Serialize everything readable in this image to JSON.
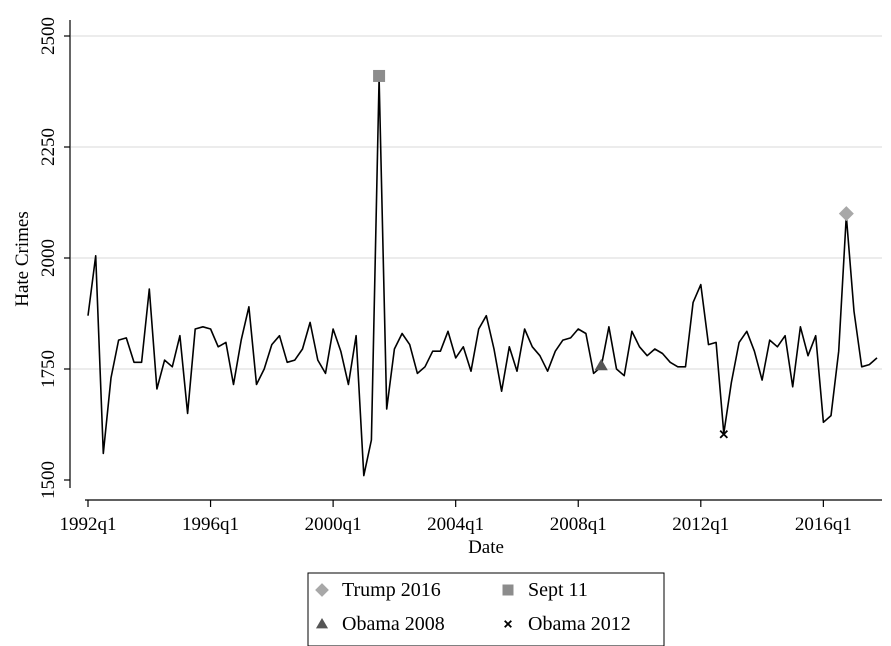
{
  "chart_data": {
    "type": "line",
    "title": "",
    "xlabel": "Date",
    "ylabel": "Hate Crimes",
    "ylim": [
      1500,
      2500
    ],
    "xlim": [
      "1992q1",
      "2017q4"
    ],
    "grid": true,
    "legend_position": "bottom",
    "yticks": [
      1500,
      1750,
      2000,
      2250,
      2500
    ],
    "xticks": [
      "1992q1",
      "1996q1",
      "2000q1",
      "2004q1",
      "2008q1",
      "2012q1",
      "2016q1"
    ],
    "series": [
      {
        "color": "#000000",
        "x": [
          "1992q1",
          "1992q2",
          "1992q3",
          "1992q4",
          "1993q1",
          "1993q2",
          "1993q3",
          "1993q4",
          "1994q1",
          "1994q2",
          "1994q3",
          "1994q4",
          "1995q1",
          "1995q2",
          "1995q3",
          "1995q4",
          "1996q1",
          "1996q2",
          "1996q3",
          "1996q4",
          "1997q1",
          "1997q2",
          "1997q3",
          "1997q4",
          "1998q1",
          "1998q2",
          "1998q3",
          "1998q4",
          "1999q1",
          "1999q2",
          "1999q3",
          "1999q4",
          "2000q1",
          "2000q2",
          "2000q3",
          "2000q4",
          "2001q1",
          "2001q2",
          "2001q3",
          "2001q4",
          "2002q1",
          "2002q2",
          "2002q3",
          "2002q4",
          "2003q1",
          "2003q2",
          "2003q3",
          "2003q4",
          "2004q1",
          "2004q2",
          "2004q3",
          "2004q4",
          "2005q1",
          "2005q2",
          "2005q3",
          "2005q4",
          "2006q1",
          "2006q2",
          "2006q3",
          "2006q4",
          "2007q1",
          "2007q2",
          "2007q3",
          "2007q4",
          "2008q1",
          "2008q2",
          "2008q3",
          "2008q4",
          "2009q1",
          "2009q2",
          "2009q3",
          "2009q4",
          "2010q1",
          "2010q2",
          "2010q3",
          "2010q4",
          "2011q1",
          "2011q2",
          "2011q3",
          "2011q4",
          "2012q1",
          "2012q2",
          "2012q3",
          "2012q4",
          "2013q1",
          "2013q2",
          "2013q3",
          "2013q4",
          "2014q1",
          "2014q2",
          "2014q3",
          "2014q4",
          "2015q1",
          "2015q2",
          "2015q3",
          "2015q4",
          "2016q1",
          "2016q2",
          "2016q3",
          "2016q4",
          "2017q1",
          "2017q2",
          "2017q3",
          "2017q4"
        ],
        "values": [
          1870,
          2005,
          1560,
          1730,
          1815,
          1820,
          1765,
          1765,
          1930,
          1705,
          1770,
          1755,
          1825,
          1650,
          1840,
          1845,
          1840,
          1800,
          1810,
          1715,
          1815,
          1890,
          1715,
          1750,
          1805,
          1825,
          1765,
          1770,
          1795,
          1855,
          1770,
          1740,
          1840,
          1790,
          1715,
          1825,
          1510,
          1590,
          2405,
          1660,
          1795,
          1830,
          1805,
          1740,
          1755,
          1790,
          1790,
          1835,
          1775,
          1800,
          1745,
          1840,
          1870,
          1795,
          1700,
          1800,
          1745,
          1840,
          1800,
          1780,
          1745,
          1790,
          1815,
          1820,
          1840,
          1830,
          1740,
          1755,
          1845,
          1750,
          1735,
          1835,
          1800,
          1780,
          1795,
          1785,
          1765,
          1755,
          1755,
          1900,
          1940,
          1805,
          1810,
          1605,
          1720,
          1810,
          1835,
          1790,
          1725,
          1815,
          1800,
          1825,
          1710,
          1845,
          1780,
          1825,
          1630,
          1645,
          1790,
          2095,
          1880,
          1755,
          1760,
          1775
        ]
      }
    ],
    "markers": [
      {
        "label": "Trump 2016",
        "x": "2016q4",
        "y": 2100,
        "shape": "diamond",
        "color": "#a8a8a8"
      },
      {
        "label": "Sept 11",
        "x": "2001q3",
        "y": 2410,
        "shape": "square",
        "color": "#8c8c8c"
      },
      {
        "label": "Obama 2008",
        "x": "2008q4",
        "y": 1758,
        "shape": "triangle",
        "color": "#555555"
      },
      {
        "label": "Obama 2012",
        "x": "2012q4",
        "y": 1603,
        "shape": "x",
        "color": "#000000"
      }
    ]
  }
}
